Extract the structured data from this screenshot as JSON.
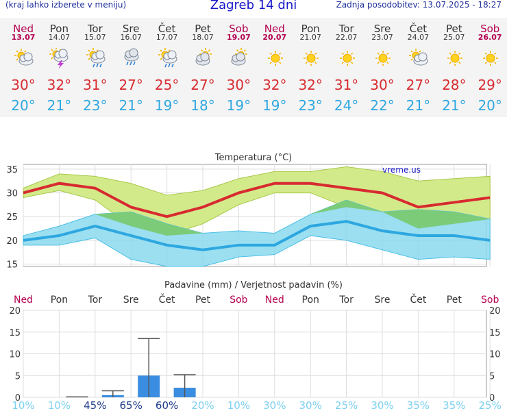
{
  "header": {
    "hint": "(kraj lahko izberete v meniju)",
    "title": "Zagreb 14 dni",
    "updated": "Zadnja posodobitev: 13.07.2025 - 18:27"
  },
  "days": [
    {
      "name": "Ned",
      "date": "13.07",
      "highlight": true,
      "icon": "partly-cloudy-icon",
      "tmax": "30°",
      "tmin": "20°"
    },
    {
      "name": "Pon",
      "date": "14.07",
      "highlight": false,
      "icon": "thunderstorm-icon",
      "tmax": "32°",
      "tmin": "21°"
    },
    {
      "name": "Tor",
      "date": "15.07",
      "highlight": false,
      "icon": "sun-cloud-rain-icon",
      "tmax": "31°",
      "tmin": "23°"
    },
    {
      "name": "Sre",
      "date": "16.07",
      "highlight": false,
      "icon": "cloud-rain-icon",
      "tmax": "27°",
      "tmin": "21°"
    },
    {
      "name": "Čet",
      "date": "17.07",
      "highlight": false,
      "icon": "sun-cloud-rain-icon",
      "tmax": "25°",
      "tmin": "19°"
    },
    {
      "name": "Pet",
      "date": "18.07",
      "highlight": false,
      "icon": "cloudy-icon",
      "tmax": "27°",
      "tmin": "18°"
    },
    {
      "name": "Sob",
      "date": "19.07",
      "highlight": true,
      "icon": "cloudy-icon",
      "tmax": "30°",
      "tmin": "19°"
    },
    {
      "name": "Ned",
      "date": "20.07",
      "highlight": true,
      "icon": "sun-icon",
      "tmax": "32°",
      "tmin": "19°"
    },
    {
      "name": "Pon",
      "date": "21.07",
      "highlight": false,
      "icon": "sun-icon",
      "tmax": "32°",
      "tmin": "23°"
    },
    {
      "name": "Tor",
      "date": "22.07",
      "highlight": false,
      "icon": "sun-icon",
      "tmax": "31°",
      "tmin": "24°"
    },
    {
      "name": "Sre",
      "date": "23.07",
      "highlight": false,
      "icon": "sun-icon",
      "tmax": "30°",
      "tmin": "22°"
    },
    {
      "name": "Čet",
      "date": "24.07",
      "highlight": false,
      "icon": "partly-cloudy-icon",
      "tmax": "27°",
      "tmin": "21°"
    },
    {
      "name": "Pet",
      "date": "25.07",
      "highlight": false,
      "icon": "sun-icon",
      "tmax": "28°",
      "tmin": "21°"
    },
    {
      "name": "Sob",
      "date": "26.07",
      "highlight": true,
      "icon": "sun-icon",
      "tmax": "29°",
      "tmin": "20°"
    }
  ],
  "colors": {
    "tmax": "#d72b30",
    "tmin": "#2ea7e0",
    "weekend": "#b3004f",
    "max_band": "#d3ea8a",
    "min_band": "#8ad9ef",
    "overlap_band": "#7ccb79",
    "bar": "#3a8de0",
    "prob_dark": "#1e3a8a",
    "prob_light": "#7cd0f0"
  },
  "chart_data": [
    {
      "type": "line",
      "title": "Temperatura (°C)",
      "watermark": "vreme.us",
      "ylim": [
        14.5,
        36
      ],
      "yticks": [
        15,
        20,
        25,
        30,
        35
      ],
      "categories": [
        "Ned",
        "Pon",
        "Tor",
        "Sre",
        "Čet",
        "Pet",
        "Sob",
        "Ned",
        "Pon",
        "Tor",
        "Sre",
        "Čet",
        "Pet",
        "Sob"
      ],
      "series": [
        {
          "name": "",
          "values": [
            30,
            32,
            31,
            27,
            25,
            27,
            30,
            32,
            32,
            31,
            30,
            27,
            28,
            29
          ]
        },
        {
          "name": "",
          "values": [
            20,
            21,
            23,
            21,
            19,
            18,
            19,
            19,
            23,
            24,
            22,
            21,
            21,
            20
          ]
        }
      ],
      "bands": [
        {
          "upper": [
            31,
            34,
            33.5,
            32,
            29.5,
            30.5,
            33,
            34.5,
            34.5,
            35.5,
            34.5,
            32.5,
            33,
            33.5
          ],
          "lower": [
            29,
            30.5,
            28.5,
            23,
            21,
            23.5,
            27.5,
            30,
            30,
            27,
            26,
            22.5,
            23.5,
            24.5
          ]
        },
        {
          "upper": [
            21,
            23,
            25.5,
            26,
            23.5,
            21.5,
            22,
            21.5,
            25.5,
            28.5,
            26,
            26.5,
            26,
            24.5
          ],
          "lower": [
            19,
            19,
            20.5,
            16,
            14.5,
            14.5,
            16.5,
            17,
            21,
            20,
            18,
            16,
            16.5,
            16
          ]
        }
      ]
    },
    {
      "type": "bar",
      "title": "Padavine (mm) / Verjetnost padavin (%)",
      "ylim": [
        0,
        20
      ],
      "yticks": [
        0,
        5,
        10,
        15,
        20
      ],
      "categories": [
        "Ned",
        "Pon",
        "Tor",
        "Sre",
        "Čet",
        "Pet",
        "Sob",
        "Ned",
        "Pon",
        "Tor",
        "Sre",
        "Čet",
        "Pet",
        "Sob"
      ],
      "values": [
        0,
        0,
        0.5,
        5,
        2.2,
        0,
        0,
        0,
        0,
        0,
        0,
        0,
        0,
        0
      ],
      "error_max": [
        0,
        0,
        1.5,
        13.5,
        5.2,
        0,
        0,
        0,
        0,
        0,
        0,
        0,
        0,
        0
      ],
      "probability": [
        "10%",
        "10%",
        "45%",
        "65%",
        "60%",
        "20%",
        "10%",
        "30%",
        "30%",
        "25%",
        "30%",
        "35%",
        "35%",
        "25%"
      ],
      "prob_values": [
        10,
        10,
        45,
        65,
        60,
        20,
        10,
        30,
        30,
        25,
        30,
        35,
        35,
        25
      ]
    }
  ]
}
